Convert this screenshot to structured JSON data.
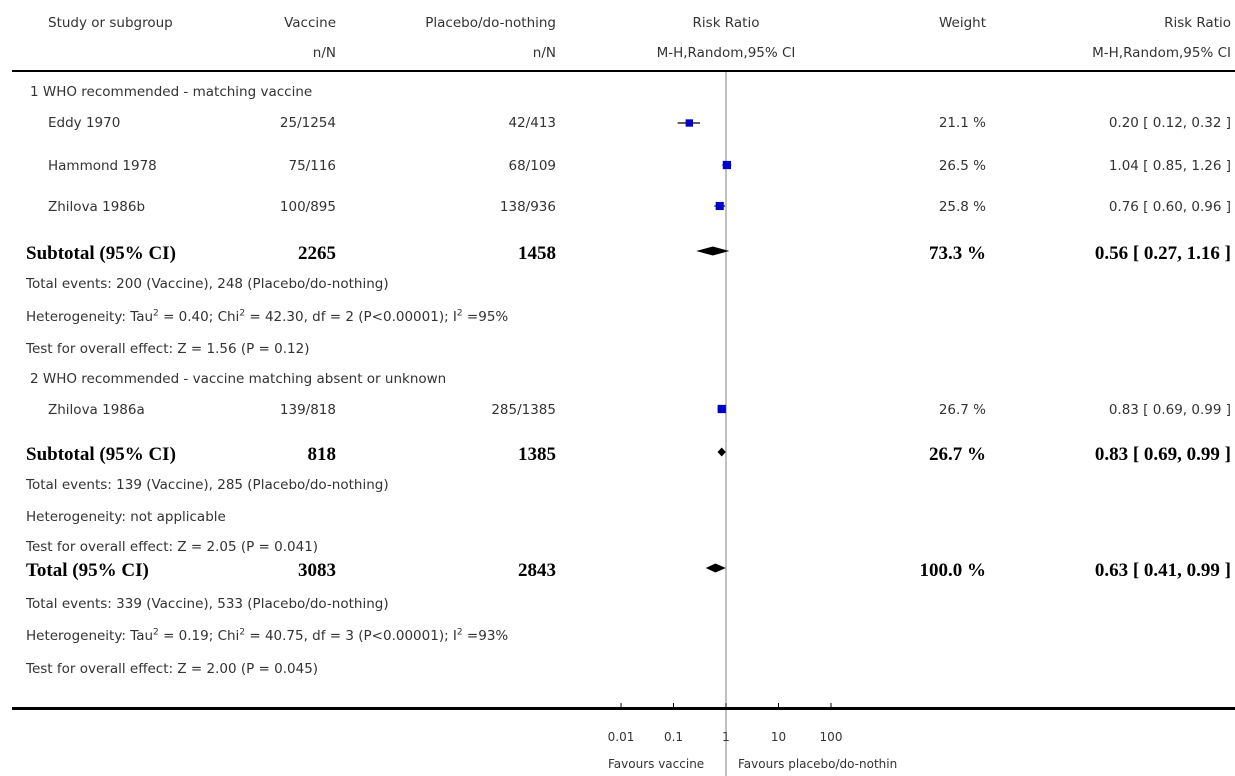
{
  "header": {
    "col_study": "Study or subgroup",
    "col_vaccine": "Vaccine",
    "col_placebo": "Placebo/do-nothing",
    "col_rr_plot": "Risk Ratio",
    "col_weight": "Weight",
    "col_rr_value": "Risk Ratio",
    "sub_vaccine": "n/N",
    "sub_placebo": "n/N",
    "sub_rr_plot": "M-H,Random,95% CI",
    "sub_rr_value": "M-H,Random,95% CI"
  },
  "subgroups": [
    {
      "title": "1 WHO recommended - matching vaccine",
      "studies": [
        {
          "name": "Eddy 1970",
          "vaccine": "25/1254",
          "placebo": "42/413",
          "weight": "21.1 %",
          "rr_text": "0.20 [ 0.12, 0.32 ]"
        },
        {
          "name": "Hammond 1978",
          "vaccine": "75/116",
          "placebo": "68/109",
          "weight": "26.5 %",
          "rr_text": "1.04 [ 0.85, 1.26 ]"
        },
        {
          "name": "Zhilova 1986b",
          "vaccine": "100/895",
          "placebo": "138/936",
          "weight": "25.8 %",
          "rr_text": "0.76 [ 0.60, 0.96 ]"
        }
      ],
      "subtotal": {
        "label": "Subtotal (95% CI)",
        "vaccine": "2265",
        "placebo": "1458",
        "weight": "73.3 %",
        "rr_text": "0.56 [ 0.27, 1.16 ]"
      },
      "events": "Total events: 200 (Vaccine), 248 (Placebo/do-nothing)",
      "heterogeneity": {
        "tau_prefix": "Heterogeneity: Tau",
        "tau_value": " = 0.40; Chi",
        "chi_value": " = 42.30, df = 2 (P<0.00001); I",
        "i2_value": " =95%"
      },
      "overall": "Test for overall effect: Z = 1.56 (P = 0.12)"
    },
    {
      "title": "2 WHO recommended - vaccine matching absent or unknown",
      "studies": [
        {
          "name": "Zhilova 1986a",
          "vaccine": "139/818",
          "placebo": "285/1385",
          "weight": "26.7 %",
          "rr_text": "0.83 [ 0.69, 0.99 ]"
        }
      ],
      "subtotal": {
        "label": "Subtotal (95% CI)",
        "vaccine": "818",
        "placebo": "1385",
        "weight": "26.7 %",
        "rr_text": "0.83 [ 0.69, 0.99 ]"
      },
      "events": "Total events: 139 (Vaccine), 285 (Placebo/do-nothing)",
      "heterogeneity_text": "Heterogeneity: not applicable",
      "overall": "Test for overall effect: Z = 2.05 (P = 0.041)"
    }
  ],
  "total": {
    "label": "Total (95% CI)",
    "vaccine": "3083",
    "placebo": "2843",
    "weight": "100.0 %",
    "rr_text": "0.63 [ 0.41, 0.99 ]",
    "events": "Total events: 339 (Vaccine), 533 (Placebo/do-nothing)",
    "heterogeneity": {
      "tau_prefix": "Heterogeneity: Tau",
      "tau_value": " = 0.19; Chi",
      "chi_value": " = 40.75, df = 3 (P<0.00001); I",
      "i2_value": " =93%"
    },
    "overall": "Test for overall effect: Z = 2.00 (P = 0.045)"
  },
  "sup2": "2",
  "axis": {
    "ticks": [
      "0.01",
      "0.1",
      "1",
      "10",
      "100"
    ],
    "favours_left": "Favours vaccine",
    "favours_right": "Favours placebo/do-nothin"
  },
  "colors": {
    "study_marker": "#0000cc",
    "diamond": "#000000",
    "axis": "#000000",
    "ref_line": "#808080"
  },
  "chart_data": {
    "type": "forest",
    "scale": "log",
    "xlim": [
      0.01,
      100
    ],
    "x_ticks": [
      0.01,
      0.1,
      1,
      10,
      100
    ],
    "studies": [
      {
        "name": "Eddy 1970",
        "rr": 0.2,
        "lo": 0.12,
        "hi": 0.32,
        "weight": 21.1
      },
      {
        "name": "Hammond 1978",
        "rr": 1.04,
        "lo": 0.85,
        "hi": 1.26,
        "weight": 26.5
      },
      {
        "name": "Zhilova 1986b",
        "rr": 0.76,
        "lo": 0.6,
        "hi": 0.96,
        "weight": 25.8
      },
      {
        "name": "Zhilova 1986a",
        "rr": 0.83,
        "lo": 0.69,
        "hi": 0.99,
        "weight": 26.7
      }
    ],
    "pooled": [
      {
        "label": "Subtotal 1",
        "rr": 0.56,
        "lo": 0.27,
        "hi": 1.16
      },
      {
        "label": "Subtotal 2",
        "rr": 0.83,
        "lo": 0.69,
        "hi": 0.99
      },
      {
        "label": "Total",
        "rr": 0.63,
        "lo": 0.41,
        "hi": 0.99
      }
    ]
  }
}
